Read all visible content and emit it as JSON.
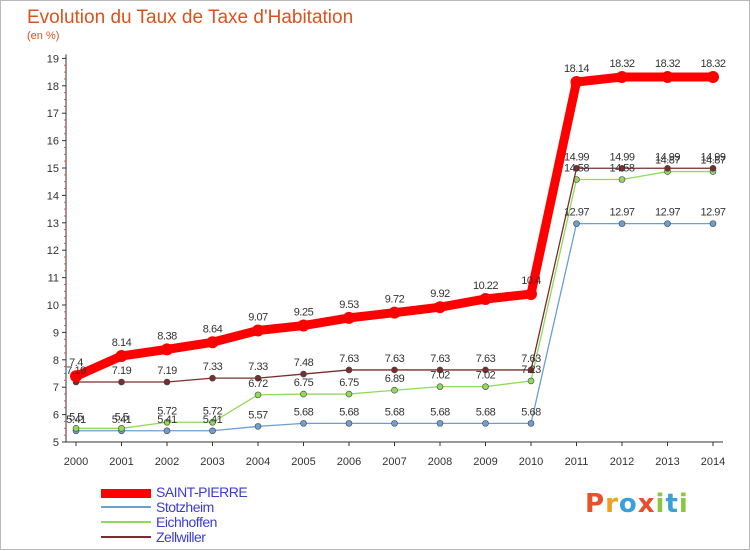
{
  "header": {
    "title": "Evolution du Taux de Taxe d'Habitation",
    "unit": "(en %)"
  },
  "chart_data": {
    "type": "line",
    "title": "Evolution du Taux de Taxe d'Habitation",
    "ylabel": "(en %)",
    "x": [
      "2000",
      "2001",
      "2002",
      "2003",
      "2004",
      "2005",
      "2006",
      "2007",
      "2008",
      "2009",
      "2010",
      "2011",
      "2012",
      "2013",
      "2014"
    ],
    "ylim": [
      5,
      19
    ],
    "yticks": [
      5,
      6,
      7,
      8,
      9,
      10,
      11,
      12,
      13,
      14,
      15,
      16,
      17,
      18,
      19
    ],
    "grid": false,
    "legend_position": "bottom-left",
    "series": [
      {
        "name": "SAINT-PIERRE",
        "color": "#ff0000",
        "values": [
          7.4,
          8.14,
          8.38,
          8.64,
          9.07,
          9.25,
          9.53,
          9.72,
          9.92,
          10.22,
          10.4,
          18.14,
          18.32,
          18.32,
          18.32
        ],
        "labels": [
          "7.4",
          "8.14",
          "8.38",
          "8.64",
          "9.07",
          "9.25",
          "9.53",
          "9.72",
          "9.92",
          "10.22",
          "10.4",
          "18.14",
          "18.32",
          "18.32",
          "18.32"
        ]
      },
      {
        "name": "Stotzheim",
        "color": "#6c9ed0",
        "values": [
          5.41,
          5.41,
          5.41,
          5.41,
          5.57,
          5.68,
          5.68,
          5.68,
          5.68,
          5.68,
          5.68,
          12.97,
          12.97,
          12.97,
          12.97
        ],
        "labels": [
          "5.41",
          "5.41",
          "5.41",
          "5.41",
          "5.57",
          "5.68",
          "5.68",
          "5.68",
          "5.68",
          "5.68",
          "5.68",
          "12.97",
          "12.97",
          "12.97",
          "12.97"
        ]
      },
      {
        "name": "Eichhoffen",
        "color": "#8fda59",
        "values": [
          5.5,
          5.5,
          5.72,
          5.72,
          6.72,
          6.75,
          6.75,
          6.89,
          7.02,
          7.02,
          7.23,
          14.58,
          14.58,
          14.87,
          14.87
        ],
        "labels": [
          "5.5",
          "5.5",
          "5.72",
          "5.72",
          "6.72",
          "6.75",
          "6.75",
          "6.89",
          "7.02",
          "7.02",
          "7.23",
          "14.58",
          "14.58",
          "14.87",
          "14.87"
        ]
      },
      {
        "name": "Zellwiller",
        "color": "#7a2d2d",
        "values": [
          7.19,
          7.19,
          7.19,
          7.33,
          7.33,
          7.48,
          7.63,
          7.63,
          7.63,
          7.63,
          7.63,
          14.99,
          14.99,
          14.99,
          14.99
        ],
        "labels": [
          "7.19",
          "7.19",
          "7.19",
          "7.33",
          "7.33",
          "7.48",
          "7.63",
          "7.63",
          "7.63",
          "7.63",
          "7.63",
          "14.99",
          "14.99",
          "14.99",
          "14.99"
        ]
      }
    ]
  },
  "legend": {
    "items": [
      {
        "label": "SAINT-PIERRE",
        "color": "#ff0000"
      },
      {
        "label": "Stotzheim",
        "color": "#6c9ed0"
      },
      {
        "label": "Eichhoffen",
        "color": "#8fda59"
      },
      {
        "label": "Zellwiller",
        "color": "#7a2d2d"
      }
    ]
  },
  "logo": {
    "text": "Proxiti",
    "letters": [
      {
        "ch": "P",
        "color": "#e8502a"
      },
      {
        "ch": "r",
        "color": "#f0a020"
      },
      {
        "ch": "o",
        "color": "#3aa0d8"
      },
      {
        "ch": "x",
        "color": "#e8502a"
      },
      {
        "ch": "i",
        "color": "#8cc63f"
      },
      {
        "ch": "t",
        "color": "#3aa0d8"
      },
      {
        "ch": "i",
        "color": "#8cc63f"
      }
    ]
  }
}
